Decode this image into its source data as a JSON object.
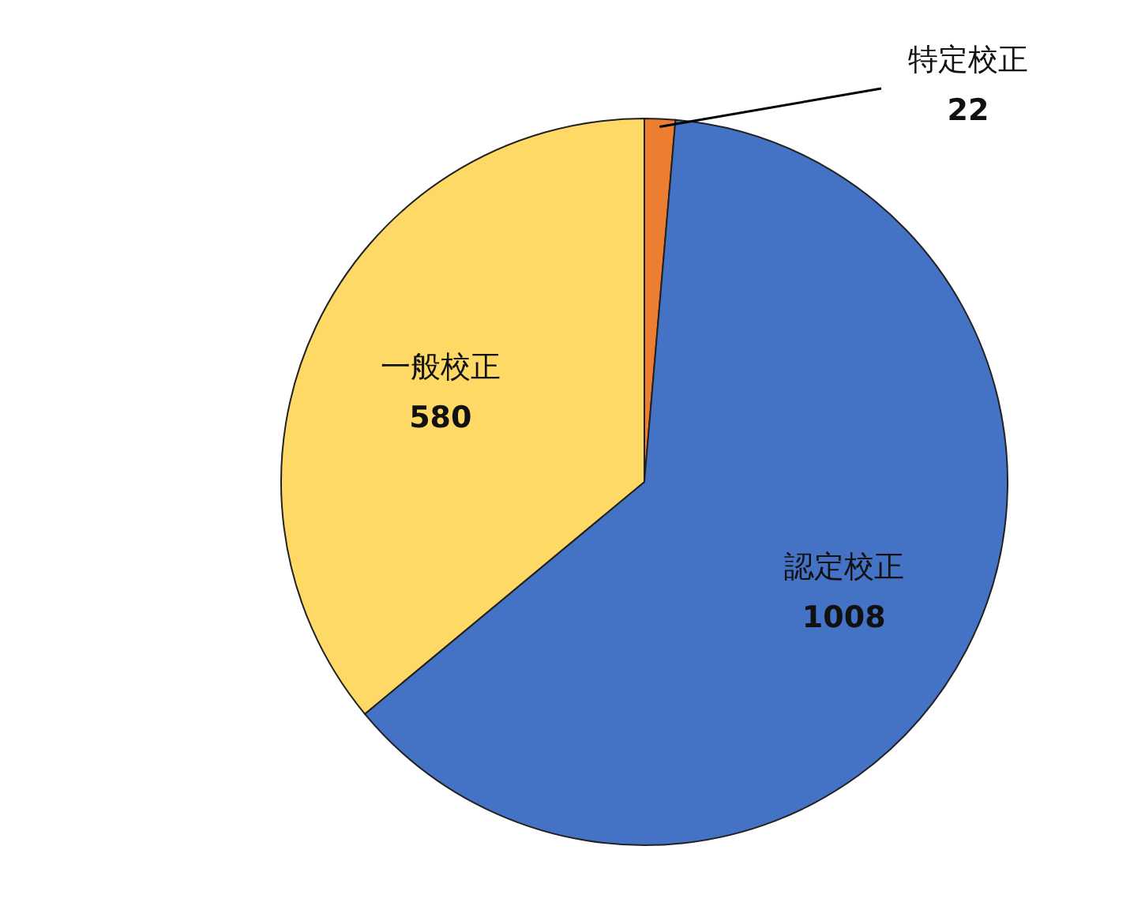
{
  "chart_data": {
    "type": "pie",
    "categories": [
      "特定校正",
      "認定校正",
      "一般校正"
    ],
    "values": [
      22,
      1008,
      580
    ],
    "colors": [
      "#ed7d31",
      "#4472c4",
      "#ffd966"
    ],
    "data_labels": true
  }
}
